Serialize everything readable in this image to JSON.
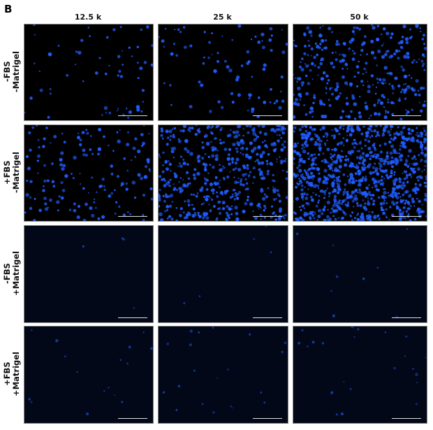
{
  "figure": {
    "panel_letter": "B",
    "columns": [
      "12.5 k",
      "25 k",
      "50 k"
    ],
    "rows": [
      {
        "line1": "-FBS",
        "line2": "-Matrigel"
      },
      {
        "line1": "+FBS",
        "line2": "-Matrigel"
      },
      {
        "line1": "-FBS",
        "line2": "+Matrigel"
      },
      {
        "line1": "+FBS",
        "line2": "+Matrigel"
      }
    ],
    "colors": {
      "nuclei": "#1f5cff",
      "background_no_matrigel": "#000000",
      "background_matrigel": "#020818"
    }
  }
}
